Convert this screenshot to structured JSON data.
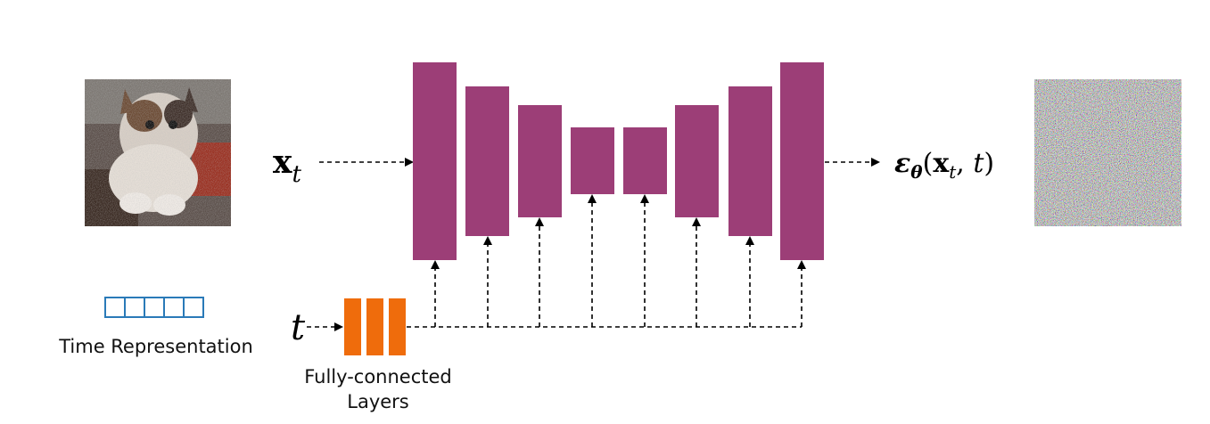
{
  "colors": {
    "unet_block": "#9c3e77",
    "fc_layer": "#ef6c0c",
    "time_box": "#2a7ab8",
    "arrow": "#000000"
  },
  "input": {
    "symbol_main": "x",
    "symbol_sub": "t",
    "image_desc": "noisy-cat-image"
  },
  "output": {
    "eps": "ε",
    "theta": "θ",
    "open": "(",
    "x": "x",
    "x_sub": "t",
    "comma": ", ",
    "t": "t",
    "close": ")",
    "image_desc": "noise-image"
  },
  "time": {
    "symbol": "t",
    "representation_label": "Time Representation",
    "cells": 5
  },
  "fc": {
    "label_line1": "Fully-connected",
    "label_line2": "Layers",
    "bars": 3
  },
  "unet": {
    "blocks": 8
  }
}
